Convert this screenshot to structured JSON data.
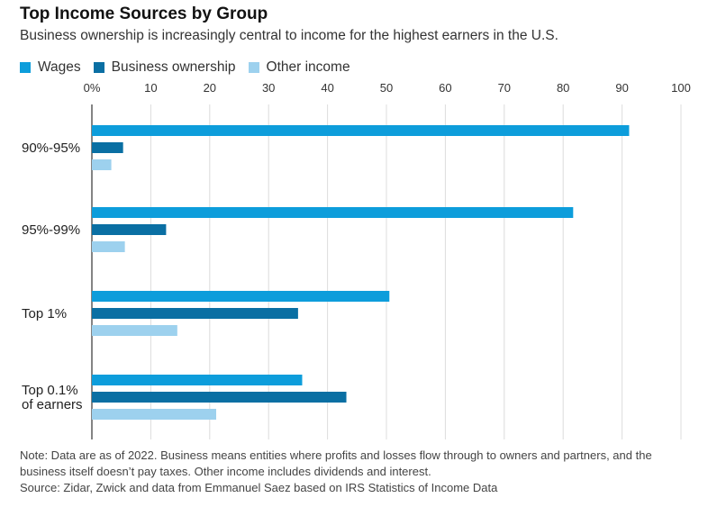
{
  "title": "Top Income Sources by Group",
  "subtitle": "Business ownership is increasingly central to income for the highest earners in the U.S.",
  "note": "Note: Data are as of 2022. Business means entities where profits and losses flow through to owners and partners, and the business itself doesn’t pay taxes. Other income includes dividends and interest.",
  "source": "Source: Zidar, Zwick and data from Emmanuel Saez based on IRS Statistics of Income Data",
  "colors": {
    "wages": "#0d9ddb",
    "business": "#0a6fa3",
    "other": "#9dd1ee",
    "grid": "#dcdcdc",
    "axis": "#333333"
  },
  "chart_data": {
    "type": "bar",
    "orientation": "horizontal",
    "title": "Top Income Sources by Group",
    "subtitle": "Business ownership is increasingly central to income for the highest earners in the U.S.",
    "categories": [
      "90%-95%",
      "95%-99%",
      "Top 1%",
      "Top 0.1% of earners"
    ],
    "category_lines": [
      [
        "90%-95%"
      ],
      [
        "95%-99%"
      ],
      [
        "Top 1%"
      ],
      [
        "Top 0.1%",
        "of earners"
      ]
    ],
    "series": [
      {
        "name": "Wages",
        "values": [
          91.2,
          81.7,
          50.5,
          35.7
        ],
        "color": "#0d9ddb"
      },
      {
        "name": "Business ownership",
        "values": [
          5.3,
          12.6,
          35.0,
          43.2
        ],
        "color": "#0a6fa3"
      },
      {
        "name": "Other income",
        "values": [
          3.3,
          5.6,
          14.5,
          21.1
        ],
        "color": "#9dd1ee"
      }
    ],
    "xlim": [
      0,
      100
    ],
    "xticks": [
      "0%",
      "10",
      "20",
      "30",
      "40",
      "50",
      "60",
      "70",
      "80",
      "90",
      "100"
    ],
    "xlabel": "",
    "ylabel": "",
    "grid": true,
    "legend": "top-left"
  }
}
